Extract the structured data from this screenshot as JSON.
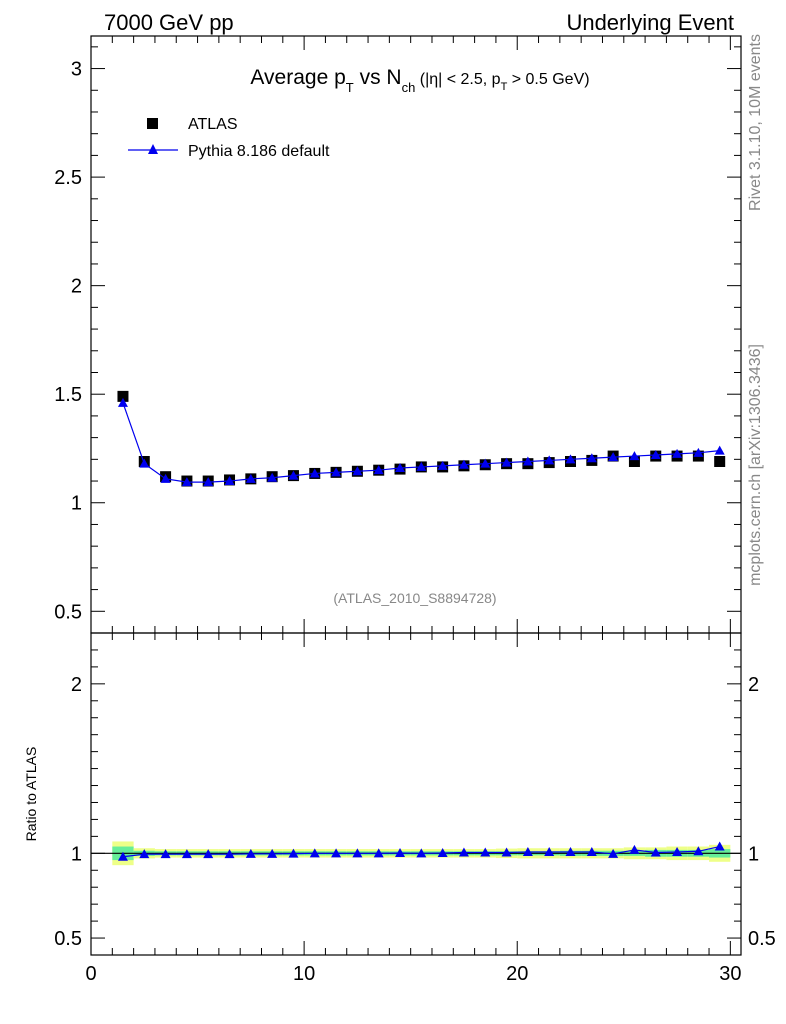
{
  "header": {
    "left": "7000 GeV pp",
    "right": "Underlying Event"
  },
  "title": {
    "main_a": "Average p",
    "main_sub1": "T",
    "main_b": " vs N",
    "main_sub2": "ch",
    "cut_a": " (|η| < 2.5, p",
    "cut_sub": "T",
    "cut_b": " > 0.5 GeV)"
  },
  "side": {
    "rivet": "Rivet 3.1.10,  10M events",
    "mcplots": "mcplots.cern.ch [arXiv:1306.3436]"
  },
  "watermark": "(ATLAS_2010_S8894728)",
  "legend": {
    "data_label": "ATLAS",
    "mc_label": "Pythia 8.186 default"
  },
  "colors": {
    "data": "#000000",
    "mc": "#0000ee",
    "band_inner": "#66ee99",
    "band_outer": "#eeff88"
  },
  "ratio_ylabel": "Ratio to ATLAS",
  "chart_data": [
    {
      "type": "scatter",
      "panel": "main",
      "xlim": [
        0,
        30.5
      ],
      "ylim": [
        0.4,
        3.15
      ],
      "yticks": [
        0.5,
        1,
        1.5,
        2,
        2.5,
        3
      ],
      "ytick_labels": [
        "0.5",
        "1",
        "1.5",
        "2",
        "2.5",
        "3"
      ],
      "x": [
        1.5,
        2.5,
        3.5,
        4.5,
        5.5,
        6.5,
        7.5,
        8.5,
        9.5,
        10.5,
        11.5,
        12.5,
        13.5,
        14.5,
        15.5,
        16.5,
        17.5,
        18.5,
        19.5,
        20.5,
        21.5,
        22.5,
        23.5,
        24.5,
        25.5,
        26.5,
        27.5,
        28.5,
        29.5
      ],
      "series": [
        {
          "name": "ATLAS",
          "marker": "square",
          "values": [
            1.49,
            1.19,
            1.12,
            1.1,
            1.1,
            1.105,
            1.11,
            1.12,
            1.125,
            1.135,
            1.14,
            1.145,
            1.15,
            1.155,
            1.165,
            1.165,
            1.17,
            1.175,
            1.18,
            1.18,
            1.185,
            1.19,
            1.195,
            1.215,
            1.19,
            1.215,
            1.215,
            1.215,
            1.19
          ]
        },
        {
          "name": "Pythia 8.186 default",
          "marker": "triangle",
          "line": true,
          "values": [
            1.46,
            1.18,
            1.11,
            1.095,
            1.095,
            1.1,
            1.11,
            1.115,
            1.125,
            1.135,
            1.14,
            1.145,
            1.15,
            1.16,
            1.165,
            1.17,
            1.175,
            1.18,
            1.185,
            1.19,
            1.195,
            1.2,
            1.205,
            1.21,
            1.215,
            1.22,
            1.225,
            1.23,
            1.24
          ]
        }
      ]
    },
    {
      "type": "line",
      "panel": "ratio",
      "xlim": [
        0,
        30.5
      ],
      "ylim": [
        0.4,
        2.3
      ],
      "yticks": [
        0.5,
        1,
        2
      ],
      "ytick_labels": [
        "0.5",
        "1",
        "2"
      ],
      "xticks": [
        0,
        10,
        20,
        30
      ],
      "xtick_labels": [
        "0",
        "10",
        "20",
        "30"
      ],
      "ylabel": "Ratio to ATLAS",
      "x": [
        1.5,
        2.5,
        3.5,
        4.5,
        5.5,
        6.5,
        7.5,
        8.5,
        9.5,
        10.5,
        11.5,
        12.5,
        13.5,
        14.5,
        15.5,
        16.5,
        17.5,
        18.5,
        19.5,
        20.5,
        21.5,
        22.5,
        23.5,
        24.5,
        25.5,
        26.5,
        27.5,
        28.5,
        29.5
      ],
      "band_inner": [
        0.04,
        0.015,
        0.012,
        0.012,
        0.012,
        0.012,
        0.012,
        0.012,
        0.012,
        0.012,
        0.012,
        0.012,
        0.012,
        0.012,
        0.012,
        0.012,
        0.012,
        0.012,
        0.012,
        0.012,
        0.012,
        0.015,
        0.015,
        0.015,
        0.015,
        0.02,
        0.02,
        0.02,
        0.025
      ],
      "band_outer": [
        0.07,
        0.03,
        0.025,
        0.025,
        0.025,
        0.025,
        0.025,
        0.025,
        0.025,
        0.025,
        0.025,
        0.025,
        0.025,
        0.025,
        0.025,
        0.025,
        0.025,
        0.025,
        0.028,
        0.03,
        0.03,
        0.03,
        0.03,
        0.03,
        0.035,
        0.035,
        0.04,
        0.04,
        0.05
      ],
      "series": [
        {
          "name": "Pythia 8.186 default",
          "values": [
            0.98,
            0.995,
            0.995,
            0.995,
            0.995,
            0.995,
            0.997,
            0.997,
            0.998,
            1.0,
            1.0,
            1.0,
            1.0,
            1.002,
            1.0,
            1.002,
            1.005,
            1.005,
            1.005,
            1.008,
            1.008,
            1.008,
            1.008,
            0.997,
            1.02,
            1.005,
            1.008,
            1.012,
            1.04
          ]
        }
      ]
    }
  ]
}
